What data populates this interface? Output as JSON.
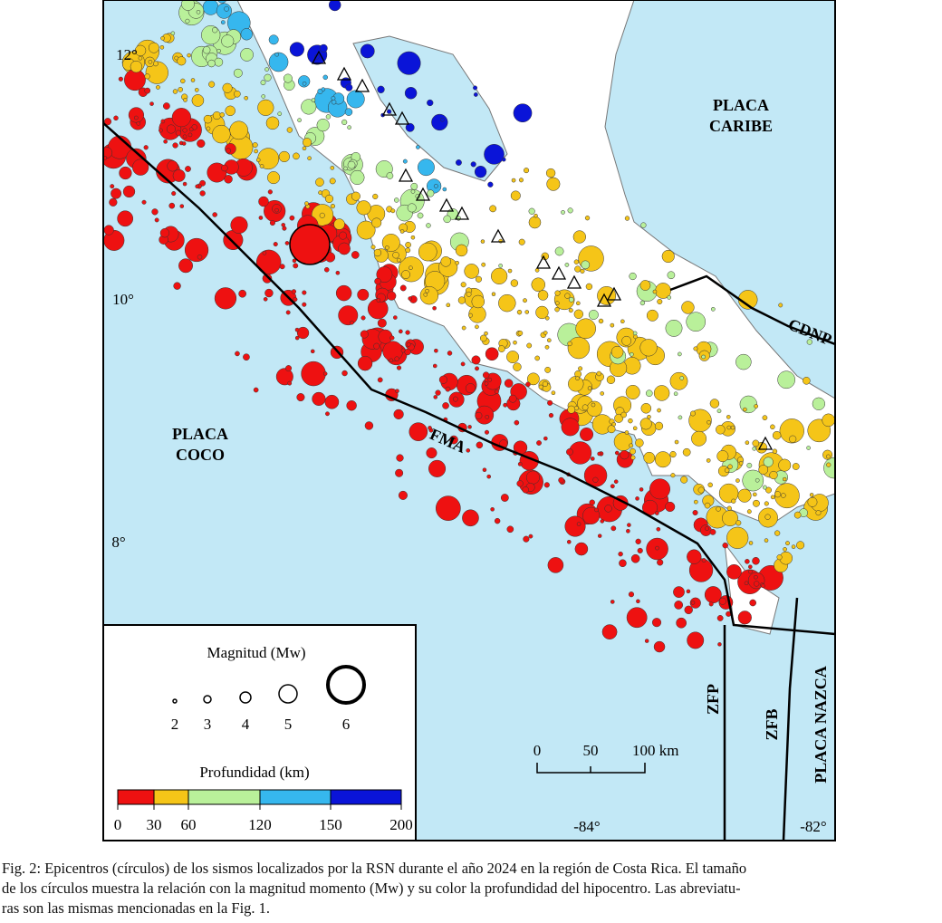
{
  "map": {
    "labels": {
      "caribe": [
        "PLACA",
        "CARIBE"
      ],
      "coco": [
        "PLACA",
        "COCO"
      ],
      "nazca": "PLACA NAZCA",
      "fma": "FMA",
      "cdnp": "CDNP",
      "zfp": "ZFP",
      "zfb": "ZFB"
    },
    "latitudes": [
      "12°",
      "10°",
      "8°"
    ],
    "longitudes": [
      "-84°",
      "-82°"
    ],
    "legend": {
      "magnitude_title": "Magnitud (Mw)",
      "magnitudes": [
        2,
        3,
        4,
        5,
        6
      ],
      "depth_title": "Profundidad (km)",
      "depth_ticks": [
        0,
        30,
        60,
        120,
        150,
        200
      ],
      "depth_colors": [
        "#ee1111",
        "#f5c518",
        "#b9f09a",
        "#36b7ee",
        "#0a14d8"
      ]
    },
    "scale_bar": [
      "0",
      "50",
      "100 km"
    ]
  },
  "caption": [
    "Fig. 2: Epicentros (círculos) de los sismos localizados por la RSN durante el año 2024 en la región de Costa Rica. El tamaño",
    "de los círculos muestra la relación con la magnitud momento (Mw) y su color la profundidad del hipocentro. Las abreviatu-",
    "ras son las mismas mencionadas en la Fig. 1."
  ]
}
